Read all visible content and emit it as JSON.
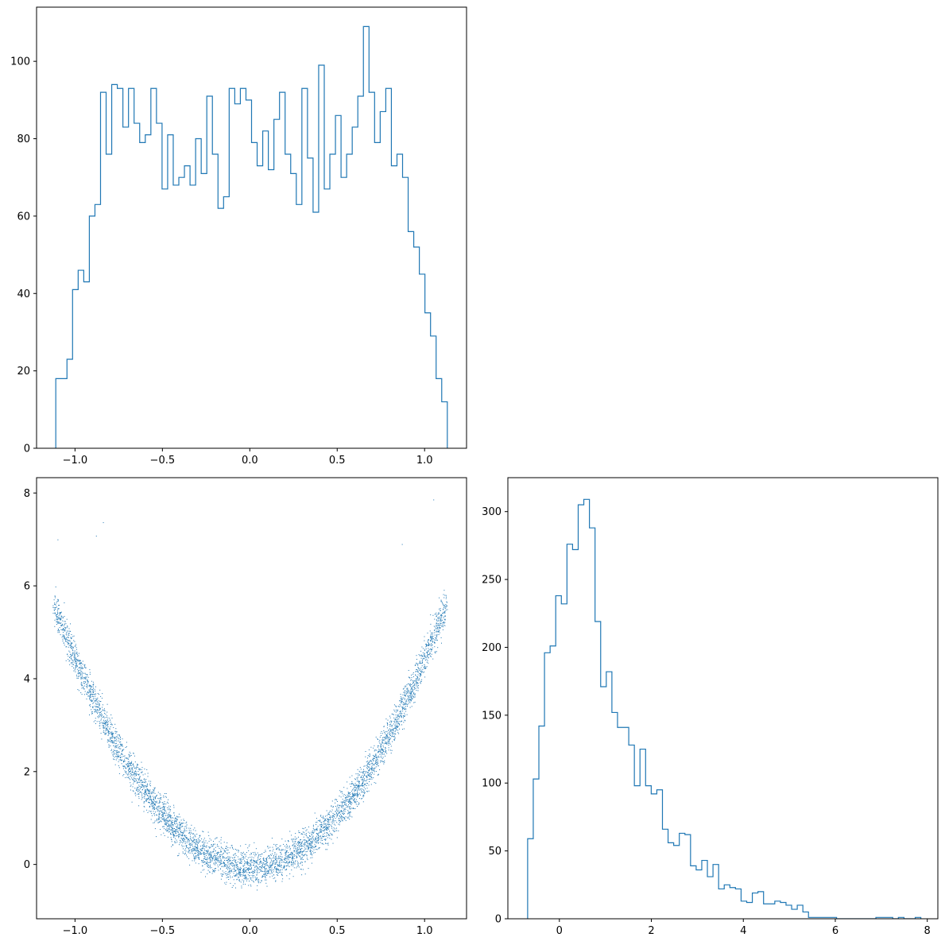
{
  "colors": {
    "series": "#1f77b4",
    "axis": "#000000",
    "background": "#ffffff"
  },
  "chart_data": [
    {
      "type": "histogram",
      "position": "top-left",
      "style": "step",
      "xlim": [
        -1.22,
        1.24
      ],
      "ylim": [
        0,
        114
      ],
      "xticks": [
        -1.0,
        -0.5,
        0.0,
        0.5,
        1.0
      ],
      "xtick_labels": [
        "−1.0",
        "−0.5",
        "0.0",
        "0.5",
        "1.0"
      ],
      "yticks": [
        0,
        20,
        40,
        60,
        80,
        100
      ],
      "ytick_labels": [
        "0",
        "20",
        "40",
        "60",
        "80",
        "100"
      ],
      "bin_edges": [
        -1.11,
        1.13
      ],
      "values": [
        18,
        18,
        23,
        41,
        46,
        43,
        60,
        63,
        92,
        76,
        94,
        93,
        83,
        93,
        84,
        79,
        81,
        93,
        84,
        67,
        81,
        68,
        70,
        73,
        68,
        80,
        71,
        91,
        76,
        62,
        65,
        93,
        89,
        93,
        90,
        79,
        73,
        82,
        72,
        85,
        92,
        76,
        71,
        63,
        93,
        75,
        61,
        99,
        67,
        76,
        86,
        70,
        76,
        83,
        91,
        109,
        92,
        79,
        87,
        93,
        73,
        76,
        70,
        56,
        52,
        45,
        35,
        29,
        18,
        12
      ]
    },
    {
      "type": "scatter",
      "position": "bottom-left",
      "xlim": [
        -1.22,
        1.24
      ],
      "ylim": [
        -1.17,
        8.33
      ],
      "xticks": [
        -1.0,
        -0.5,
        0.0,
        0.5,
        1.0
      ],
      "xtick_labels": [
        "−1.0",
        "−0.5",
        "0.0",
        "0.5",
        "1.0"
      ],
      "yticks": [
        0,
        2,
        4,
        6,
        8
      ],
      "ytick_labels": [
        "0",
        "2",
        "4",
        "6",
        "8"
      ],
      "note": "about 5000 points forming a U-shaped band: y ≈ 4.5·x² + noise, x in [-1.12, 1.12]",
      "outliers": [
        {
          "x": -1.1,
          "y": 7.0
        },
        {
          "x": -0.88,
          "y": 7.08
        },
        {
          "x": -0.84,
          "y": 7.37
        },
        {
          "x": 0.87,
          "y": 6.9
        },
        {
          "x": 1.05,
          "y": 7.86
        }
      ]
    },
    {
      "type": "histogram",
      "position": "bottom-right",
      "style": "step",
      "xlim": [
        -1.12,
        8.23
      ],
      "ylim": [
        0,
        325
      ],
      "xticks": [
        0,
        2,
        4,
        6,
        8
      ],
      "xtick_labels": [
        "0",
        "2",
        "4",
        "6",
        "8"
      ],
      "yticks": [
        0,
        50,
        100,
        150,
        200,
        250,
        300
      ],
      "ytick_labels": [
        "0",
        "50",
        "100",
        "150",
        "200",
        "250",
        "300"
      ],
      "bin_edges": [
        -0.69,
        7.86
      ],
      "values": [
        59,
        103,
        142,
        196,
        201,
        238,
        232,
        276,
        272,
        305,
        309,
        288,
        219,
        171,
        182,
        152,
        141,
        141,
        128,
        98,
        125,
        98,
        92,
        95,
        66,
        56,
        54,
        63,
        62,
        39,
        36,
        43,
        31,
        40,
        22,
        25,
        23,
        22,
        13,
        12,
        19,
        20,
        11,
        11,
        13,
        12,
        10,
        7,
        10,
        5,
        1,
        1,
        1,
        1,
        1,
        0,
        0,
        0,
        0,
        0,
        0,
        0,
        1,
        1,
        1,
        0,
        1,
        0,
        0,
        1
      ]
    }
  ]
}
